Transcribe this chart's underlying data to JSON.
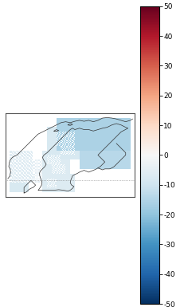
{
  "cmap_name": "RdBu_r",
  "vmin": -50,
  "vmax": 50,
  "colorbar_ticks": [
    -50,
    -40,
    -30,
    -20,
    -10,
    0,
    10,
    20,
    30,
    40,
    50
  ],
  "colorbar_tick_labels": [
    "-50",
    "-40",
    "-30",
    "-20",
    "-10",
    "0",
    "10",
    "20",
    "30",
    "40",
    "50"
  ],
  "lon_min": 4,
  "lon_max": 32,
  "lat_min": 54,
  "lat_max": 72,
  "fig_width": 2.32,
  "fig_height": 3.85,
  "dpi": 100,
  "background_color": "white",
  "border_color": "#333333",
  "dotted_lat": 57.5
}
